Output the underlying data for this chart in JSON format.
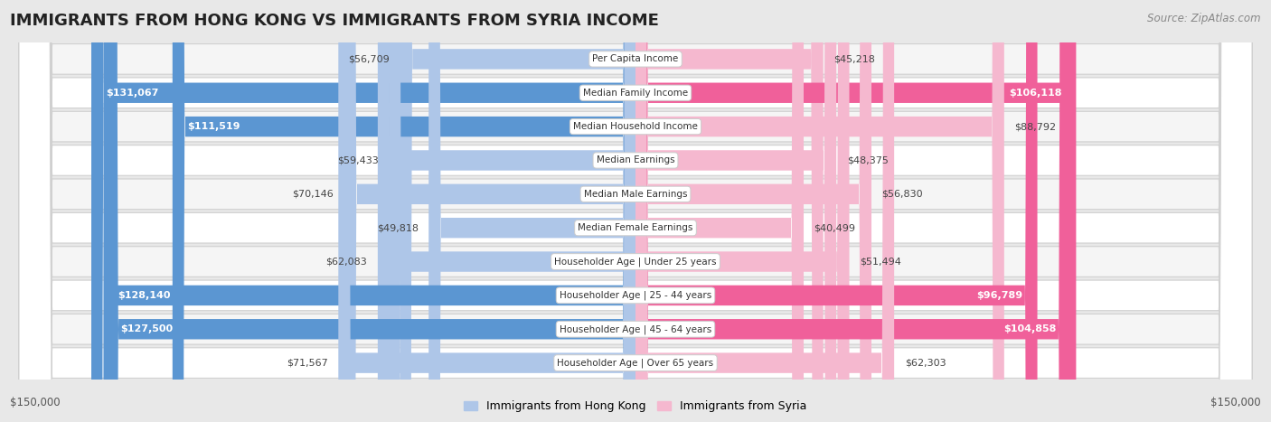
{
  "title": "IMMIGRANTS FROM HONG KONG VS IMMIGRANTS FROM SYRIA INCOME",
  "source": "Source: ZipAtlas.com",
  "categories": [
    "Per Capita Income",
    "Median Family Income",
    "Median Household Income",
    "Median Earnings",
    "Median Male Earnings",
    "Median Female Earnings",
    "Householder Age | Under 25 years",
    "Householder Age | 25 - 44 years",
    "Householder Age | 45 - 64 years",
    "Householder Age | Over 65 years"
  ],
  "hk_values": [
    56709,
    131067,
    111519,
    59433,
    70146,
    49818,
    62083,
    128140,
    127500,
    71567
  ],
  "syria_values": [
    45218,
    106118,
    88792,
    48375,
    56830,
    40499,
    51494,
    96789,
    104858,
    62303
  ],
  "hk_labels": [
    "$56,709",
    "$131,067",
    "$111,519",
    "$59,433",
    "$70,146",
    "$49,818",
    "$62,083",
    "$128,140",
    "$127,500",
    "$71,567"
  ],
  "syria_labels": [
    "$45,218",
    "$106,118",
    "$88,792",
    "$48,375",
    "$56,830",
    "$40,499",
    "$51,494",
    "$96,789",
    "$104,858",
    "$62,303"
  ],
  "hk_color_light": "#aec6e8",
  "hk_color_dark": "#5b96d2",
  "syria_color_light": "#f5b8cf",
  "syria_color_dark": "#f0609a",
  "hk_large": [
    false,
    true,
    true,
    false,
    false,
    false,
    false,
    true,
    true,
    false
  ],
  "syria_large": [
    false,
    true,
    false,
    false,
    false,
    false,
    false,
    true,
    true,
    false
  ],
  "max_value": 150000,
  "xlabel_left": "$150,000",
  "xlabel_right": "$150,000",
  "legend_hk": "Immigrants from Hong Kong",
  "legend_syria": "Immigrants from Syria",
  "bg_color": "#e8e8e8",
  "row_colors": [
    "#f5f5f5",
    "#ffffff",
    "#f5f5f5",
    "#ffffff",
    "#f5f5f5",
    "#ffffff",
    "#f5f5f5",
    "#ffffff",
    "#f5f5f5",
    "#ffffff"
  ]
}
